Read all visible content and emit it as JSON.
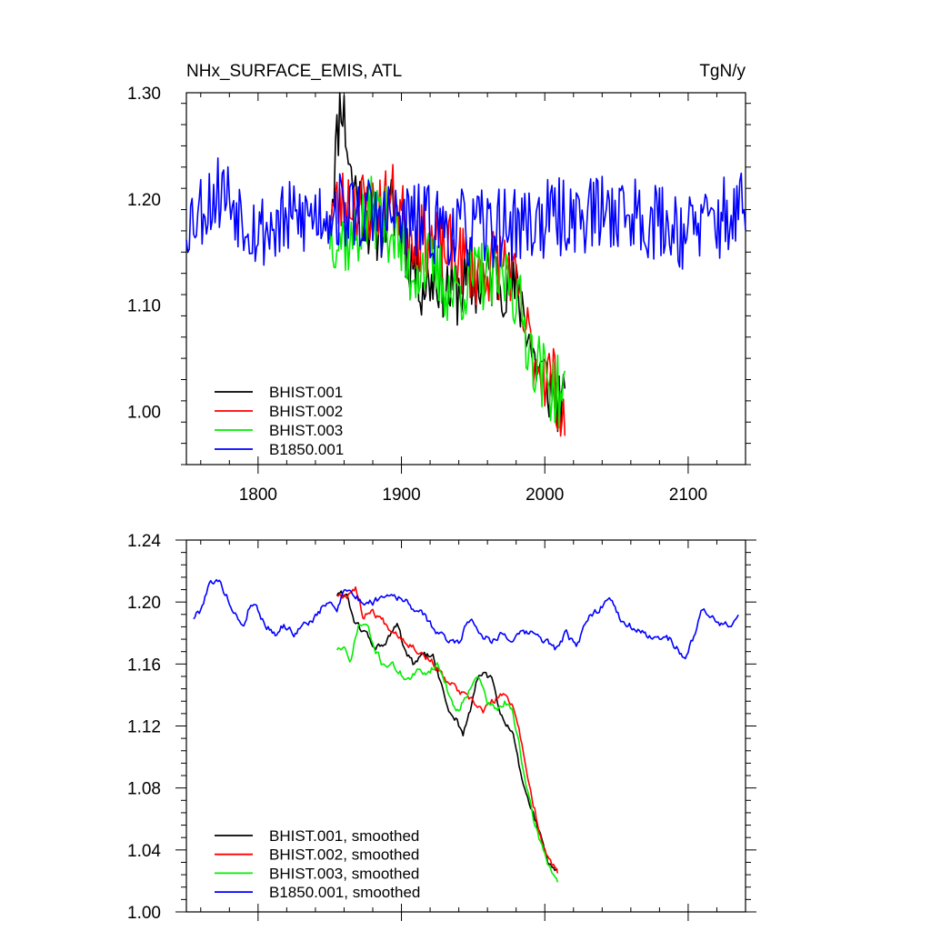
{
  "chart_data": [
    {
      "type": "line",
      "title": "NHx_SURFACE_EMIS, ATL",
      "units": "TgN/y",
      "xlabel": "",
      "ylabel": "",
      "xlim": [
        1750,
        2140
      ],
      "ylim": [
        0.95,
        1.3
      ],
      "x_ticks": [
        1800,
        1900,
        2000,
        2100
      ],
      "x_tick_labels": [
        "1800",
        "1900",
        "2000",
        "2100"
      ],
      "y_ticks": [
        1.0,
        1.1,
        1.2,
        1.3
      ],
      "y_tick_labels": [
        "1.00",
        "1.10",
        "1.20",
        "1.30"
      ],
      "legend_position": "bottom-left",
      "series": [
        {
          "name": "BHIST.001",
          "color": "#000000",
          "x_start": 1850,
          "x_end": 2014,
          "anchors": [
            [
              1850,
              1.18
            ],
            [
              1858,
              1.3
            ],
            [
              1865,
              1.22
            ],
            [
              1880,
              1.17
            ],
            [
              1895,
              1.19
            ],
            [
              1905,
              1.15
            ],
            [
              1915,
              1.12
            ],
            [
              1925,
              1.13
            ],
            [
              1935,
              1.11
            ],
            [
              1945,
              1.12
            ],
            [
              1955,
              1.12
            ],
            [
              1965,
              1.13
            ],
            [
              1975,
              1.12
            ],
            [
              1985,
              1.1
            ],
            [
              1992,
              1.05
            ],
            [
              2000,
              1.03
            ],
            [
              2005,
              1.02
            ],
            [
              2014,
              1.0
            ]
          ],
          "amp": 0.035,
          "seed": 11
        },
        {
          "name": "BHIST.002",
          "color": "#ff0000",
          "x_start": 1850,
          "x_end": 2014,
          "anchors": [
            [
              1850,
              1.19
            ],
            [
              1865,
              1.2
            ],
            [
              1880,
              1.19
            ],
            [
              1895,
              1.2
            ],
            [
              1905,
              1.17
            ],
            [
              1920,
              1.16
            ],
            [
              1935,
              1.15
            ],
            [
              1945,
              1.14
            ],
            [
              1955,
              1.13
            ],
            [
              1965,
              1.14
            ],
            [
              1975,
              1.14
            ],
            [
              1982,
              1.1
            ],
            [
              1990,
              1.06
            ],
            [
              1998,
              1.04
            ],
            [
              2006,
              1.03
            ],
            [
              2014,
              0.99
            ]
          ],
          "amp": 0.035,
          "seed": 23
        },
        {
          "name": "BHIST.003",
          "color": "#00ee00",
          "x_start": 1850,
          "x_end": 2014,
          "anchors": [
            [
              1850,
              1.17
            ],
            [
              1865,
              1.16
            ],
            [
              1880,
              1.19
            ],
            [
              1895,
              1.17
            ],
            [
              1905,
              1.13
            ],
            [
              1915,
              1.14
            ],
            [
              1925,
              1.13
            ],
            [
              1935,
              1.11
            ],
            [
              1945,
              1.12
            ],
            [
              1955,
              1.13
            ],
            [
              1965,
              1.12
            ],
            [
              1975,
              1.13
            ],
            [
              1982,
              1.1
            ],
            [
              1990,
              1.06
            ],
            [
              2000,
              1.03
            ],
            [
              2008,
              1.02
            ],
            [
              2014,
              1.01
            ]
          ],
          "amp": 0.035,
          "seed": 37
        },
        {
          "name": "B1850.001",
          "color": "#0000ff",
          "x_start": 1750,
          "x_end": 2140,
          "anchors": [
            [
              1750,
              1.18
            ],
            [
              1775,
              1.21
            ],
            [
              1800,
              1.17
            ],
            [
              1850,
              1.19
            ],
            [
              1900,
              1.18
            ],
            [
              1950,
              1.17
            ],
            [
              2000,
              1.18
            ],
            [
              2050,
              1.19
            ],
            [
              2100,
              1.17
            ],
            [
              2140,
              1.19
            ]
          ],
          "amp": 0.038,
          "seed": 53
        }
      ]
    },
    {
      "type": "line",
      "title": "",
      "xlabel": "",
      "ylabel": "",
      "xlim": [
        1750,
        2140
      ],
      "ylim": [
        1.0,
        1.24
      ],
      "x_ticks": [
        1800,
        1900,
        2000,
        2100
      ],
      "y_ticks": [
        1.0,
        1.04,
        1.08,
        1.12,
        1.16,
        1.2,
        1.24
      ],
      "y_tick_labels": [
        "1.00",
        "1.04",
        "1.08",
        "1.12",
        "1.16",
        "1.20",
        "1.24"
      ],
      "legend_position": "bottom-left",
      "series": [
        {
          "name": "BHIST.001, smoothed",
          "color": "#000000",
          "x_start": 1855,
          "x_end": 2009,
          "anchors": [
            [
              1855,
              1.205
            ],
            [
              1862,
              1.205
            ],
            [
              1868,
              1.185
            ],
            [
              1875,
              1.18
            ],
            [
              1882,
              1.17
            ],
            [
              1890,
              1.175
            ],
            [
              1897,
              1.185
            ],
            [
              1902,
              1.17
            ],
            [
              1908,
              1.16
            ],
            [
              1915,
              1.165
            ],
            [
              1922,
              1.165
            ],
            [
              1928,
              1.145
            ],
            [
              1933,
              1.13
            ],
            [
              1938,
              1.125
            ],
            [
              1943,
              1.115
            ],
            [
              1948,
              1.13
            ],
            [
              1953,
              1.15
            ],
            [
              1958,
              1.155
            ],
            [
              1963,
              1.15
            ],
            [
              1968,
              1.13
            ],
            [
              1973,
              1.12
            ],
            [
              1978,
              1.115
            ],
            [
              1983,
              1.09
            ],
            [
              1988,
              1.075
            ],
            [
              1993,
              1.06
            ],
            [
              1998,
              1.045
            ],
            [
              2003,
              1.03
            ],
            [
              2009,
              1.025
            ]
          ],
          "amp": 0.004,
          "seed": 61
        },
        {
          "name": "BHIST.002, smoothed",
          "color": "#ff0000",
          "x_start": 1855,
          "x_end": 2009,
          "anchors": [
            [
              1855,
              1.205
            ],
            [
              1862,
              1.205
            ],
            [
              1868,
              1.21
            ],
            [
              1873,
              1.19
            ],
            [
              1878,
              1.195
            ],
            [
              1885,
              1.19
            ],
            [
              1890,
              1.185
            ],
            [
              1897,
              1.18
            ],
            [
              1903,
              1.175
            ],
            [
              1910,
              1.17
            ],
            [
              1917,
              1.165
            ],
            [
              1923,
              1.16
            ],
            [
              1930,
              1.15
            ],
            [
              1937,
              1.145
            ],
            [
              1943,
              1.14
            ],
            [
              1950,
              1.135
            ],
            [
              1957,
              1.13
            ],
            [
              1963,
              1.135
            ],
            [
              1970,
              1.14
            ],
            [
              1977,
              1.135
            ],
            [
              1982,
              1.12
            ],
            [
              1987,
              1.09
            ],
            [
              1992,
              1.07
            ],
            [
              1997,
              1.05
            ],
            [
              2002,
              1.035
            ],
            [
              2009,
              1.025
            ]
          ],
          "amp": 0.004,
          "seed": 67
        },
        {
          "name": "BHIST.003, smoothed",
          "color": "#00ee00",
          "x_start": 1855,
          "x_end": 2009,
          "anchors": [
            [
              1855,
              1.17
            ],
            [
              1860,
              1.17
            ],
            [
              1864,
              1.16
            ],
            [
              1870,
              1.185
            ],
            [
              1876,
              1.185
            ],
            [
              1881,
              1.17
            ],
            [
              1887,
              1.16
            ],
            [
              1893,
              1.16
            ],
            [
              1898,
              1.155
            ],
            [
              1905,
              1.15
            ],
            [
              1912,
              1.155
            ],
            [
              1918,
              1.155
            ],
            [
              1925,
              1.16
            ],
            [
              1930,
              1.15
            ],
            [
              1935,
              1.135
            ],
            [
              1940,
              1.13
            ],
            [
              1945,
              1.14
            ],
            [
              1950,
              1.15
            ],
            [
              1955,
              1.15
            ],
            [
              1960,
              1.135
            ],
            [
              1967,
              1.13
            ],
            [
              1972,
              1.135
            ],
            [
              1977,
              1.13
            ],
            [
              1982,
              1.11
            ],
            [
              1987,
              1.08
            ],
            [
              1992,
              1.06
            ],
            [
              1997,
              1.045
            ],
            [
              2003,
              1.03
            ],
            [
              2009,
              1.02
            ]
          ],
          "amp": 0.004,
          "seed": 71
        },
        {
          "name": "B1850.001, smoothed",
          "color": "#0000ff",
          "x_start": 1755,
          "x_end": 2135,
          "anchors": [
            [
              1755,
              1.19
            ],
            [
              1760,
              1.195
            ],
            [
              1765,
              1.21
            ],
            [
              1770,
              1.215
            ],
            [
              1775,
              1.21
            ],
            [
              1780,
              1.2
            ],
            [
              1785,
              1.19
            ],
            [
              1790,
              1.185
            ],
            [
              1795,
              1.2
            ],
            [
              1800,
              1.195
            ],
            [
              1805,
              1.185
            ],
            [
              1812,
              1.18
            ],
            [
              1818,
              1.185
            ],
            [
              1825,
              1.18
            ],
            [
              1832,
              1.185
            ],
            [
              1840,
              1.19
            ],
            [
              1848,
              1.2
            ],
            [
              1855,
              1.195
            ],
            [
              1860,
              1.21
            ],
            [
              1866,
              1.205
            ],
            [
              1872,
              1.2
            ],
            [
              1880,
              1.2
            ],
            [
              1888,
              1.205
            ],
            [
              1895,
              1.205
            ],
            [
              1903,
              1.2
            ],
            [
              1910,
              1.195
            ],
            [
              1917,
              1.19
            ],
            [
              1925,
              1.18
            ],
            [
              1933,
              1.175
            ],
            [
              1940,
              1.175
            ],
            [
              1948,
              1.19
            ],
            [
              1955,
              1.18
            ],
            [
              1962,
              1.175
            ],
            [
              1970,
              1.18
            ],
            [
              1978,
              1.175
            ],
            [
              1985,
              1.18
            ],
            [
              1992,
              1.18
            ],
            [
              2000,
              1.175
            ],
            [
              2008,
              1.17
            ],
            [
              2015,
              1.18
            ],
            [
              2022,
              1.17
            ],
            [
              2030,
              1.19
            ],
            [
              2038,
              1.195
            ],
            [
              2045,
              1.205
            ],
            [
              2052,
              1.19
            ],
            [
              2060,
              1.185
            ],
            [
              2068,
              1.18
            ],
            [
              2076,
              1.175
            ],
            [
              2084,
              1.18
            ],
            [
              2092,
              1.17
            ],
            [
              2098,
              1.165
            ],
            [
              2103,
              1.175
            ],
            [
              2110,
              1.195
            ],
            [
              2118,
              1.19
            ],
            [
              2125,
              1.185
            ],
            [
              2130,
              1.185
            ],
            [
              2135,
              1.19
            ]
          ],
          "amp": 0.004,
          "seed": 79
        }
      ]
    }
  ]
}
